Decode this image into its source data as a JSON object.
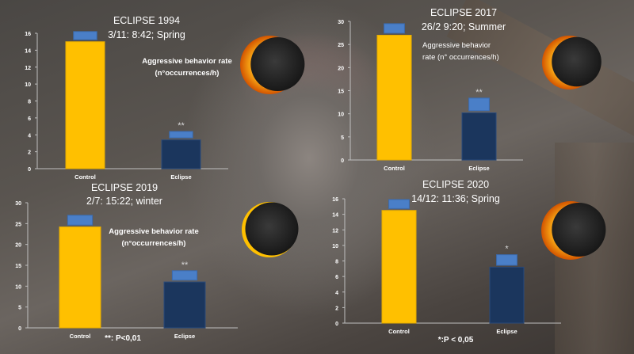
{
  "colors": {
    "control": "#ffc000",
    "eclipse": "#1b365d",
    "error": "#4a7fc8",
    "axis": "#bfbfbf",
    "text": "#ffffff"
  },
  "chart_data": [
    {
      "type": "bar",
      "title": "ECLIPSE 1994",
      "subtitle": "3/11: 8:42; Spring",
      "annotation": [
        "Aggressive behavior rate",
        "(n°occurrences/h)"
      ],
      "categories": [
        "Control",
        "Eclipse"
      ],
      "values": [
        15,
        3.4
      ],
      "error_upper": [
        16.2,
        4.4
      ],
      "significance": [
        "",
        "**"
      ],
      "ylim": [
        0,
        16
      ],
      "yticks": [
        0,
        2,
        4,
        6,
        8,
        10,
        12,
        14,
        16
      ],
      "footnote": ""
    },
    {
      "type": "bar",
      "title": "ECLIPSE 2017",
      "subtitle": "26/2 9:20; Summer",
      "annotation": [
        "Aggressive behavior",
        "rate (n° occurrences/h)"
      ],
      "categories": [
        "Control",
        "Eclipse"
      ],
      "values": [
        27,
        10.2
      ],
      "error_upper": [
        29.5,
        13.4
      ],
      "significance": [
        "",
        "**"
      ],
      "ylim": [
        0,
        30
      ],
      "yticks": [
        0,
        5,
        10,
        15,
        20,
        25,
        30
      ],
      "footnote": ""
    },
    {
      "type": "bar",
      "title": "ECLIPSE 2019",
      "subtitle": "2/7: 15:22; winter",
      "annotation": [
        "Aggressive behavior rate",
        "(n°occurrences/h)"
      ],
      "categories": [
        "Control",
        "Eclipse"
      ],
      "values": [
        24.2,
        11
      ],
      "error_upper": [
        27,
        13.7
      ],
      "significance": [
        "",
        "**"
      ],
      "ylim": [
        0,
        30
      ],
      "yticks": [
        0,
        5,
        10,
        15,
        20,
        25,
        30
      ],
      "footnote": "**: P<0,01"
    },
    {
      "type": "bar",
      "title": "ECLIPSE 2020",
      "subtitle": "14/12: 11:36; Spring",
      "annotation": [],
      "categories": [
        "Control",
        "Eclipse"
      ],
      "values": [
        14.5,
        7.2
      ],
      "error_upper": [
        15.9,
        8.8
      ],
      "significance": [
        "",
        "*"
      ],
      "ylim": [
        0,
        16
      ],
      "yticks": [
        0,
        2,
        4,
        6,
        8,
        10,
        12,
        14,
        16
      ],
      "footnote": "*:P < 0,05"
    }
  ]
}
